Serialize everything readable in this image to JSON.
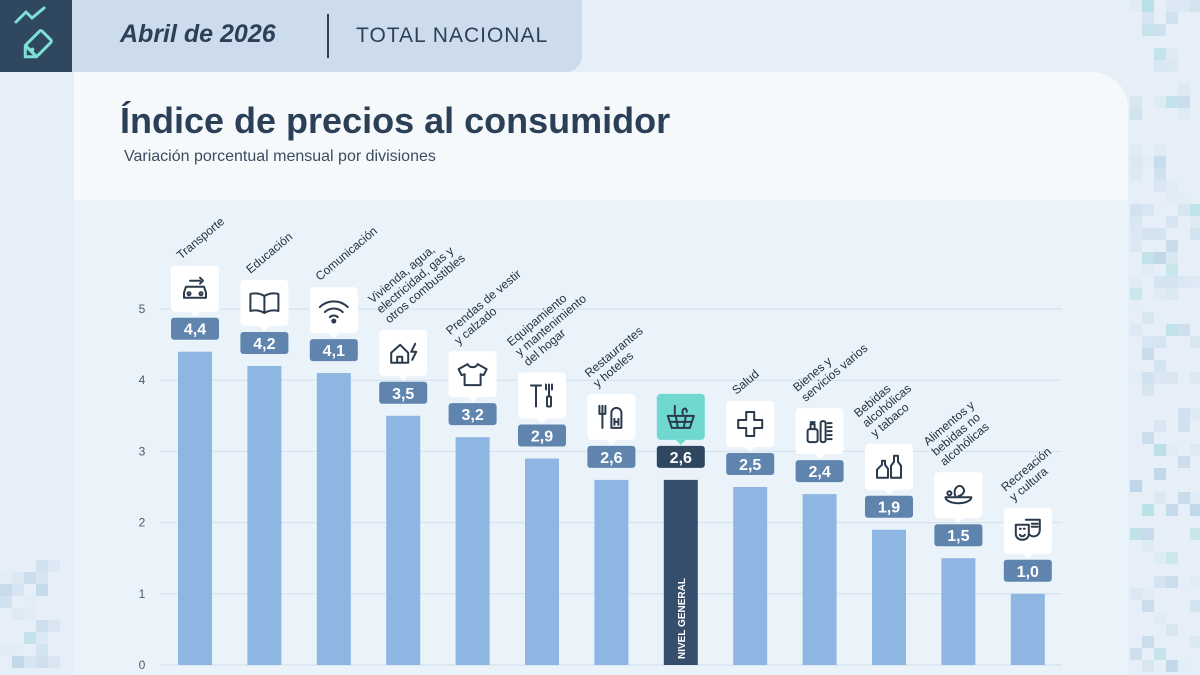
{
  "header": {
    "date": "Abril de 2026",
    "scope": "TOTAL NACIONAL"
  },
  "title": "Índice de precios al consumidor",
  "subtitle": "Variación porcentual mensual por divisiones",
  "colors": {
    "bar": "#8db6e2",
    "highlight_bar": "#354e6b",
    "value_badge": "#5f84ad",
    "value_badge_highlight": "#2f4860",
    "icon_highlight": "#6fd9cf",
    "background": "#e6eff7"
  },
  "chart_data": {
    "type": "bar",
    "title": "Índice de precios al consumidor",
    "subtitle": "Variación porcentual mensual por divisiones",
    "xlabel": "",
    "ylabel": "",
    "ylim": [
      0,
      5
    ],
    "yticks": [
      "0",
      "1",
      "2",
      "3",
      "4",
      "5"
    ],
    "grid": true,
    "categories": [
      "Transporte",
      "Educación",
      "Comunicación",
      "Vivienda, agua, electricidad, gas y otros combustibles",
      "Prendas de vestir y calzado",
      "Equipamiento y mantenimiento del hogar",
      "Restaurantes y hoteles",
      "NIVEL GENERAL",
      "Salud",
      "Bienes y servicios varios",
      "Bebidas alcohólicas y tabaco",
      "Alimentos y bebidas no alcohólicas",
      "Recreación y cultura"
    ],
    "values": [
      4.4,
      4.2,
      4.1,
      3.5,
      3.2,
      2.9,
      2.6,
      2.6,
      2.5,
      2.4,
      1.9,
      1.5,
      1.0
    ],
    "value_labels": [
      "4,4",
      "4,2",
      "4,1",
      "3,5",
      "3,2",
      "2,9",
      "2,6",
      "2,6",
      "2,5",
      "2,4",
      "1,9",
      "1,5",
      "1,0"
    ],
    "label_lines": [
      [
        "Transporte"
      ],
      [
        "Educación"
      ],
      [
        "Comunicación"
      ],
      [
        "Vivienda, agua,",
        "electricidad, gas y",
        "otros combustibles"
      ],
      [
        "Prendas de vestir",
        "y calzado"
      ],
      [
        "Equipamiento",
        "y mantenimiento",
        "del hogar"
      ],
      [
        "Restaurantes",
        "y hoteles"
      ],
      [],
      [
        "Salud"
      ],
      [
        "Bienes y",
        "servicios varios"
      ],
      [
        "Bebidas",
        "alcohólicas",
        "y tabaco"
      ],
      [
        "Alimentos y",
        "bebidas no",
        "alcohólicas"
      ],
      [
        "Recreación",
        "y cultura"
      ]
    ],
    "highlight_index": 7,
    "highlight_inside_label": "NIVEL GENERAL",
    "icons": [
      "car-wrench-icon",
      "book-icon",
      "wifi-icon",
      "house-lightning-icon",
      "tshirt-icon",
      "tools-icon",
      "restaurant-hotel-icon",
      "basket-icon",
      "health-cross-icon",
      "cosmetics-icon",
      "bottles-icon",
      "food-bowl-icon",
      "theater-masks-icon"
    ]
  }
}
